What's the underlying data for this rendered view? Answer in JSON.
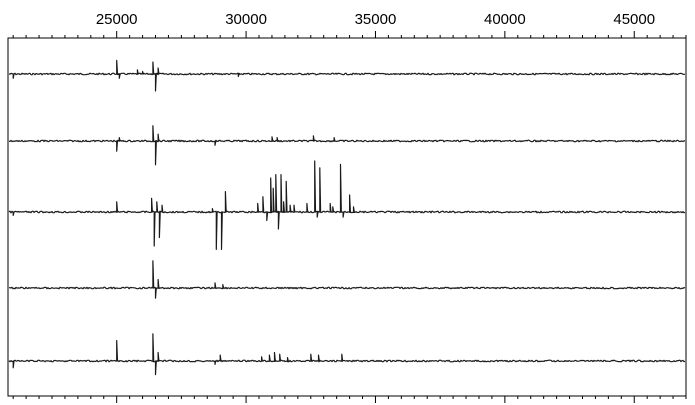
{
  "chart_data": {
    "type": "line",
    "title": "",
    "xlabel": "",
    "ylabel": "",
    "xlim": [
      20800,
      47000
    ],
    "x_axis_position": "top",
    "x_ticks": [
      25000,
      30000,
      35000,
      40000,
      45000
    ],
    "x_tick_labels": [
      "25000",
      "30000",
      "35000",
      "40000",
      "45000"
    ],
    "minor_tick_step": 500,
    "grid": false,
    "legend": "none",
    "line_color": "#1a1a1a",
    "series": [
      {
        "baseline": 1,
        "features": [
          {
            "x": 21000,
            "h": -0.25
          },
          {
            "x": 25000,
            "h": 0.8
          },
          {
            "x": 25100,
            "h": -0.25
          },
          {
            "x": 25800,
            "h": 0.25
          },
          {
            "x": 26000,
            "h": 0.15
          },
          {
            "x": 26400,
            "h": 0.7
          },
          {
            "x": 26500,
            "h": -1.0
          },
          {
            "x": 26600,
            "h": 0.35
          },
          {
            "x": 29700,
            "h": -0.15
          }
        ]
      },
      {
        "baseline": 2,
        "features": [
          {
            "x": 25000,
            "h": -0.6
          },
          {
            "x": 25100,
            "h": 0.2
          },
          {
            "x": 26400,
            "h": 0.9
          },
          {
            "x": 26500,
            "h": -1.4
          },
          {
            "x": 26600,
            "h": 0.4
          },
          {
            "x": 28800,
            "h": -0.25
          },
          {
            "x": 31000,
            "h": 0.25
          },
          {
            "x": 31200,
            "h": 0.2
          },
          {
            "x": 32600,
            "h": 0.3
          },
          {
            "x": 33400,
            "h": 0.2
          }
        ]
      },
      {
        "baseline": 3,
        "features": [
          {
            "x": 21000,
            "h": -0.2
          },
          {
            "x": 25000,
            "h": 0.6
          },
          {
            "x": 26350,
            "h": 0.8
          },
          {
            "x": 26450,
            "h": -2.0
          },
          {
            "x": 26550,
            "h": 0.6
          },
          {
            "x": 26650,
            "h": -1.5
          },
          {
            "x": 26750,
            "h": 0.4
          },
          {
            "x": 28700,
            "h": 0.2
          },
          {
            "x": 28850,
            "h": -2.2
          },
          {
            "x": 29050,
            "h": -2.2
          },
          {
            "x": 29200,
            "h": 1.2
          },
          {
            "x": 30450,
            "h": 0.5
          },
          {
            "x": 30650,
            "h": 0.9
          },
          {
            "x": 30800,
            "h": -0.5
          },
          {
            "x": 30950,
            "h": 2.0
          },
          {
            "x": 31050,
            "h": 1.4
          },
          {
            "x": 31150,
            "h": 2.2
          },
          {
            "x": 31250,
            "h": -1.0
          },
          {
            "x": 31350,
            "h": 2.2
          },
          {
            "x": 31450,
            "h": 0.6
          },
          {
            "x": 31550,
            "h": 1.8
          },
          {
            "x": 31700,
            "h": 0.4
          },
          {
            "x": 31850,
            "h": 0.4
          },
          {
            "x": 32350,
            "h": 0.5
          },
          {
            "x": 32650,
            "h": 3.0
          },
          {
            "x": 32750,
            "h": -0.3
          },
          {
            "x": 32850,
            "h": 2.6
          },
          {
            "x": 33250,
            "h": 0.5
          },
          {
            "x": 33350,
            "h": 0.3
          },
          {
            "x": 33650,
            "h": 2.8
          },
          {
            "x": 33750,
            "h": -0.3
          },
          {
            "x": 34000,
            "h": 1.0
          },
          {
            "x": 34150,
            "h": 0.3
          }
        ]
      },
      {
        "baseline": 4,
        "features": [
          {
            "x": 26400,
            "h": 1.6
          },
          {
            "x": 26500,
            "h": -0.6
          },
          {
            "x": 26600,
            "h": 0.5
          },
          {
            "x": 28800,
            "h": 0.3
          },
          {
            "x": 29100,
            "h": 0.2
          }
        ]
      },
      {
        "baseline": 5,
        "features": [
          {
            "x": 21000,
            "h": -0.4
          },
          {
            "x": 25000,
            "h": 1.2
          },
          {
            "x": 26400,
            "h": 1.6
          },
          {
            "x": 26500,
            "h": -0.8
          },
          {
            "x": 26600,
            "h": 0.5
          },
          {
            "x": 28800,
            "h": -0.2
          },
          {
            "x": 29000,
            "h": 0.35
          },
          {
            "x": 30600,
            "h": 0.25
          },
          {
            "x": 30900,
            "h": 0.35
          },
          {
            "x": 31100,
            "h": 0.5
          },
          {
            "x": 31300,
            "h": 0.4
          },
          {
            "x": 31600,
            "h": 0.2
          },
          {
            "x": 32500,
            "h": 0.4
          },
          {
            "x": 32800,
            "h": 0.35
          },
          {
            "x": 33700,
            "h": 0.4
          }
        ]
      }
    ]
  }
}
